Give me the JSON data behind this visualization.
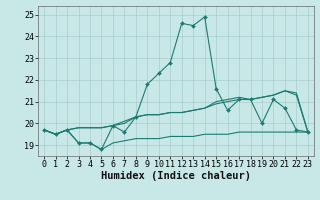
{
  "x": [
    0,
    1,
    2,
    3,
    4,
    5,
    6,
    7,
    8,
    9,
    10,
    11,
    12,
    13,
    14,
    15,
    16,
    17,
    18,
    19,
    20,
    21,
    22,
    23
  ],
  "line_main": [
    19.7,
    19.5,
    19.7,
    19.1,
    19.1,
    18.8,
    19.9,
    19.6,
    20.3,
    21.8,
    22.3,
    22.8,
    24.6,
    24.5,
    24.9,
    21.6,
    20.6,
    21.1,
    21.1,
    20.0,
    21.1,
    20.7,
    19.7,
    19.6
  ],
  "line_upper": [
    19.7,
    19.5,
    19.7,
    19.8,
    19.8,
    19.8,
    19.9,
    20.1,
    20.3,
    20.4,
    20.4,
    20.5,
    20.5,
    20.6,
    20.7,
    20.9,
    21.0,
    21.1,
    21.1,
    21.2,
    21.3,
    21.5,
    21.4,
    19.6
  ],
  "line_lower": [
    19.7,
    19.5,
    19.7,
    19.1,
    19.1,
    18.8,
    19.1,
    19.2,
    19.3,
    19.3,
    19.3,
    19.4,
    19.4,
    19.4,
    19.5,
    19.5,
    19.5,
    19.6,
    19.6,
    19.6,
    19.6,
    19.6,
    19.6,
    19.6
  ],
  "line_mid": [
    19.7,
    19.5,
    19.7,
    19.8,
    19.8,
    19.8,
    19.9,
    20.0,
    20.3,
    20.4,
    20.4,
    20.5,
    20.5,
    20.6,
    20.7,
    21.0,
    21.1,
    21.2,
    21.1,
    21.2,
    21.3,
    21.5,
    21.3,
    19.6
  ],
  "line_color": "#1b7b70",
  "bg_color": "#c8e8e8",
  "grid_color": "#a8cccc",
  "yticks": [
    19,
    20,
    21,
    22,
    23,
    24,
    25
  ],
  "xlabel": "Humidex (Indice chaleur)",
  "xlabel_fontsize": 7.5,
  "tick_fontsize": 6,
  "ylim": [
    18.5,
    25.4
  ],
  "xlim": [
    -0.5,
    23.5
  ]
}
